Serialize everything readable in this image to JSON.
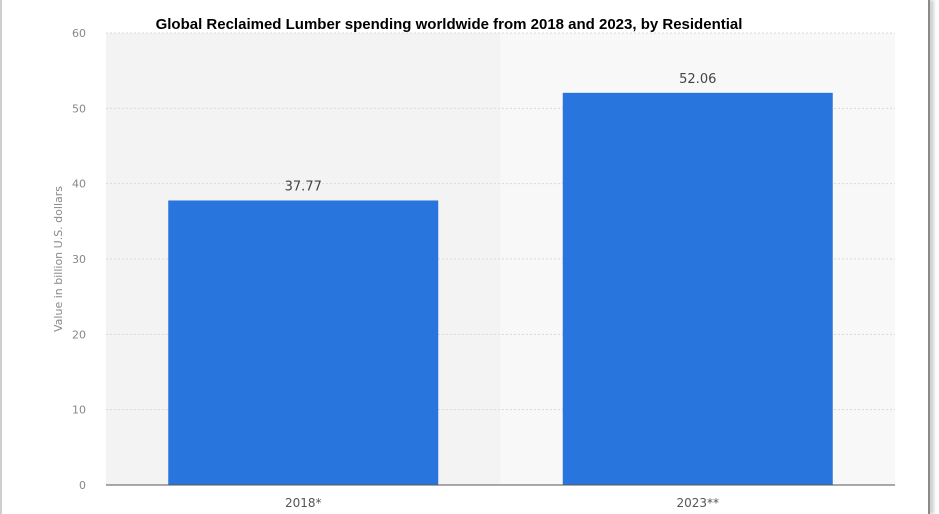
{
  "chart_data": {
    "type": "bar",
    "title": "Global Reclaimed Lumber spending worldwide from 2018 and 2023, by Residential",
    "xlabel": "",
    "ylabel": "Value in billion U.S. dollars",
    "categories": [
      "2018*",
      "2023**"
    ],
    "values": [
      37.77,
      52.06
    ],
    "value_labels": [
      "37.77",
      "52.06"
    ],
    "ylim": [
      0,
      60
    ],
    "yticks": [
      0,
      10,
      20,
      30,
      40,
      50,
      60
    ],
    "grid": true,
    "legend": "none",
    "colors": {
      "bar": "#2876DD",
      "plot_background": "#F3F3F3",
      "plot_background_alt": "#F8F8F8",
      "gridline": "#D9D9D9",
      "baseline": "#555555"
    }
  }
}
